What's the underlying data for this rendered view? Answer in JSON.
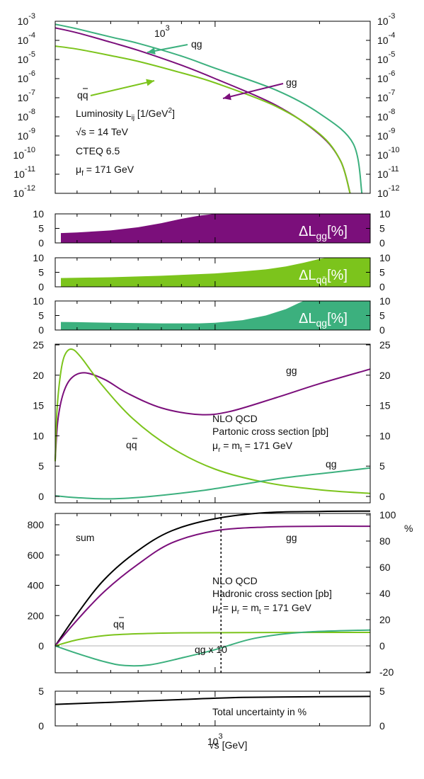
{
  "colors": {
    "gg": "#7b0f7b",
    "qq": "#7cc41c",
    "qg": "#3cb07e",
    "sum": "#000000",
    "axis": "#000000"
  },
  "x_axis": {
    "label": "√s [GeV]",
    "tick_label": "10",
    "tick_exp": "3",
    "scale": "log",
    "range": [
      346,
      2800
    ]
  },
  "chart_data": [
    {
      "type": "line",
      "name": "luminosity",
      "yscale": "log",
      "ylim": [
        1e-12,
        0.001
      ],
      "left_ticks": [
        {
          "b": "10",
          "e": "-3"
        },
        {
          "b": "10",
          "e": "-4"
        },
        {
          "b": "10",
          "e": "-5"
        },
        {
          "b": "10",
          "e": "-6"
        },
        {
          "b": "10",
          "e": "-7"
        },
        {
          "b": "10",
          "e": "-8"
        },
        {
          "b": "10",
          "e": "-9"
        },
        {
          "b": "10",
          "e": "-10"
        },
        {
          "b": "10",
          "e": "-11"
        },
        {
          "b": "10",
          "e": "-12"
        }
      ],
      "right_ticks": [
        {
          "b": "10",
          "e": "-3"
        },
        {
          "b": "10",
          "e": "-4"
        },
        {
          "b": "10",
          "e": "-5"
        },
        {
          "b": "10",
          "e": "-6"
        },
        {
          "b": "10",
          "e": "-7"
        },
        {
          "b": "10",
          "e": "-8"
        },
        {
          "b": "10",
          "e": "-9"
        },
        {
          "b": "10",
          "e": "-10"
        },
        {
          "b": "10",
          "e": "-11"
        },
        {
          "b": "10",
          "e": "-12"
        }
      ],
      "top_tick": {
        "b": "10",
        "e": "3"
      },
      "annotations": {
        "title": "Luminosity L",
        "title_sub": "ij",
        "title_unit_a": " [1/GeV",
        "title_unit_sup": "2",
        "title_unit_b": "]",
        "energy": "√s = 14 TeV",
        "pdf": "CTEQ 6.5",
        "mu": "μ",
        "mu_sub": "f",
        "mu_val": " = 171 GeV"
      },
      "arrow_labels": {
        "qg": "qg",
        "gg": "gg",
        "qq": "qq"
      },
      "series": [
        {
          "name": "qg",
          "x": [
            346,
            400,
            500,
            600,
            800,
            1000,
            1500,
            2000,
            2500,
            2650
          ],
          "y": [
            0.0007,
            0.0004,
            0.00015,
            7e-05,
            1.5e-05,
            3.5e-06,
            2.5e-07,
            1.5e-08,
            4e-10,
            1e-12
          ]
        },
        {
          "name": "gg",
          "x": [
            346,
            400,
            500,
            600,
            800,
            1000,
            1500,
            2000,
            2300,
            2450
          ],
          "y": [
            0.00045,
            0.00025,
            8e-05,
            3e-05,
            5e-06,
            1e-06,
            4e-08,
            1.2e-09,
            5e-11,
            1e-12
          ]
        },
        {
          "name": "qq",
          "x": [
            346,
            400,
            500,
            600,
            800,
            1000,
            1500,
            2000,
            2300,
            2450
          ],
          "y": [
            5e-05,
            3.5e-05,
            1.6e-05,
            8e-06,
            2e-06,
            6e-07,
            3.5e-08,
            1.3e-09,
            5e-11,
            1e-12
          ]
        }
      ]
    },
    {
      "type": "area",
      "name": "delta_gg",
      "ylim": [
        0,
        10
      ],
      "ticks": [
        "10",
        "5",
        "0"
      ],
      "label": {
        "a": "ΔL",
        "sub": "gg",
        "b": "[%]"
      },
      "x": [
        346,
        400,
        500,
        600,
        700,
        800,
        900,
        1000
      ],
      "y": [
        3.3,
        3.6,
        4.3,
        5.4,
        6.8,
        8.3,
        9.4,
        10
      ]
    },
    {
      "type": "area",
      "name": "delta_qq",
      "ylim": [
        0,
        10
      ],
      "ticks": [
        "10",
        "5",
        "0"
      ],
      "label": {
        "a": "ΔL",
        "sub": "qq̄",
        "b": "[%]"
      },
      "x": [
        346,
        500,
        700,
        1000,
        1200,
        1400,
        1600,
        1800,
        2000,
        2100
      ],
      "y": [
        3.0,
        3.3,
        3.8,
        4.6,
        5.3,
        6.0,
        7.0,
        8.3,
        9.6,
        10
      ]
    },
    {
      "type": "area",
      "name": "delta_qg",
      "ylim": [
        0,
        10
      ],
      "ticks": [
        "10",
        "5",
        "0"
      ],
      "label": {
        "a": "ΔL",
        "sub": "qg",
        "b": "[%]"
      },
      "x": [
        346,
        400,
        500,
        700,
        900,
        1000,
        1200,
        1400,
        1600,
        1750,
        1800
      ],
      "y": [
        2.8,
        2.7,
        2.5,
        2.3,
        2.3,
        2.5,
        3.4,
        5.0,
        7.2,
        9.4,
        10
      ]
    },
    {
      "type": "line",
      "name": "partonic",
      "ylim": [
        0,
        25
      ],
      "ticks": [
        "25",
        "20",
        "15",
        "10",
        "5",
        "0"
      ],
      "annotations": {
        "line1": "NLO QCD",
        "line2": "Partonic cross section [pb]",
        "mu": "μ",
        "mu_sub": "r",
        "mid": " = m",
        "mt_sub": "t",
        "val": " = 171 GeV"
      },
      "labels": {
        "gg": "gg",
        "qq": "qq",
        "qg": "qg"
      },
      "series": [
        {
          "name": "gg",
          "x": [
            346,
            352,
            365,
            385,
            420,
            480,
            560,
            700,
            900,
            1100,
            1500,
            2000,
            2800
          ],
          "y": [
            6,
            12.5,
            17,
            19.5,
            20.4,
            19.3,
            17,
            14.6,
            13.5,
            14,
            16.3,
            18.6,
            21
          ]
        },
        {
          "name": "qq",
          "x": [
            346,
            350,
            358,
            368,
            385,
            410,
            470,
            580,
            750,
            1000,
            1400,
            2000,
            2800
          ],
          "y": [
            5.8,
            14,
            20,
            23.2,
            24.3,
            23,
            18.5,
            12.8,
            8,
            4.5,
            2.3,
            1.1,
            0.5
          ]
        },
        {
          "name": "qg",
          "x": [
            346,
            400,
            500,
            650,
            900,
            1200,
            1600,
            2200,
            2800
          ],
          "y": [
            0.1,
            -0.2,
            -0.4,
            0,
            0.9,
            2,
            3.1,
            4,
            4.7
          ]
        }
      ]
    },
    {
      "type": "line",
      "name": "hadronic",
      "ylim": [
        -130,
        900
      ],
      "ticks_left": [
        "800",
        "600",
        "400",
        "200",
        "0"
      ],
      "ticks_right": [
        "100",
        "80",
        "60",
        "40",
        "20",
        "0",
        "-20"
      ],
      "right_label": "%",
      "annotations": {
        "sum": "sum",
        "gg": "gg",
        "qq": "qq",
        "qg": "qg x 10",
        "line1": "NLO QCD",
        "line2": "Hadronic cross section [pb]",
        "mu": "μ",
        "mu_sub": "f",
        "mid1": " = μ",
        "mu2_sub": "r",
        "mid2": " = m",
        "mt_sub": "t",
        "val": " = 171 GeV"
      },
      "vline_x": 1040,
      "series": [
        {
          "name": "sum",
          "x": [
            346,
            400,
            480,
            600,
            750,
            1000,
            1400,
            2000,
            2800
          ],
          "y": [
            0,
            210,
            440,
            630,
            760,
            840,
            880,
            888,
            890
          ]
        },
        {
          "name": "gg",
          "x": [
            346,
            400,
            480,
            600,
            750,
            1000,
            1400,
            2000,
            2800
          ],
          "y": [
            0,
            170,
            360,
            540,
            680,
            760,
            785,
            790,
            790
          ]
        },
        {
          "name": "qq",
          "x": [
            346,
            400,
            480,
            600,
            800,
            1200,
            2000,
            2800
          ],
          "y": [
            0,
            40,
            68,
            80,
            86,
            88,
            89,
            89
          ]
        },
        {
          "name": "qg",
          "x": [
            346,
            400,
            480,
            550,
            650,
            800,
            1000,
            1300,
            1800,
            2800
          ],
          "y": [
            0,
            -50,
            -105,
            -130,
            -125,
            -80,
            -25,
            50,
            90,
            105
          ]
        }
      ]
    },
    {
      "type": "line",
      "name": "uncertainty",
      "ylim": [
        0,
        5
      ],
      "ticks_left": [
        "5",
        "0"
      ],
      "ticks_right": [
        "5",
        "0"
      ],
      "label": "Total uncertainty in %",
      "series": [
        {
          "name": "total",
          "x": [
            346,
            500,
            800,
            1200,
            2000,
            2800
          ],
          "y": [
            3.1,
            3.4,
            3.8,
            4.1,
            4.2,
            4.25
          ]
        }
      ]
    }
  ]
}
